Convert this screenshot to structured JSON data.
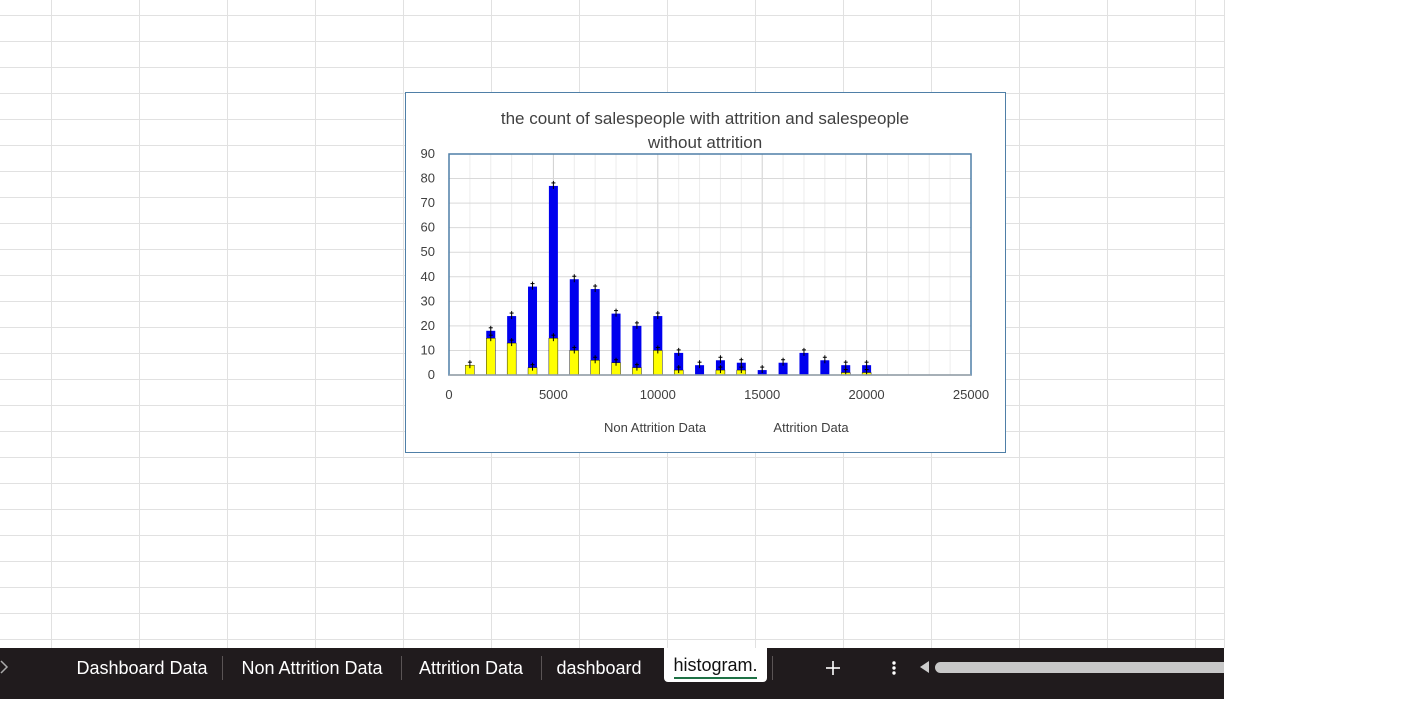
{
  "chart_data": {
    "type": "bar",
    "title_lines": [
      "the count of salespeople with attrition and salespeople",
      "without attrition"
    ],
    "xlim": [
      0,
      25000
    ],
    "ylim": [
      0,
      90
    ],
    "x_ticks": [
      "0",
      "5000",
      "10000",
      "15000",
      "20000",
      "25000"
    ],
    "y_ticks": [
      "0",
      "10",
      "20",
      "30",
      "40",
      "50",
      "60",
      "70",
      "80",
      "90"
    ],
    "legend_position": "bottom",
    "series": [
      {
        "name": "Non Attrition Data",
        "color": "#0000ee",
        "x": [
          2000,
          3000,
          4000,
          5000,
          6000,
          7000,
          8000,
          9000,
          10000,
          11000,
          12000,
          13000,
          14000,
          15000,
          16000,
          17000,
          18000,
          19000,
          20000
        ],
        "values": [
          18,
          24,
          36,
          77,
          39,
          35,
          25,
          20,
          24,
          9,
          4,
          6,
          5,
          2,
          5,
          9,
          6,
          4,
          4
        ]
      },
      {
        "name": "Attrition Data",
        "color": "#ffff00",
        "x": [
          1000,
          2000,
          3000,
          4000,
          5000,
          6000,
          7000,
          8000,
          9000,
          10000,
          11000,
          13000,
          14000,
          19000,
          20000
        ],
        "values": [
          4,
          15,
          13,
          3,
          15,
          10,
          6,
          5,
          3,
          10,
          2,
          2,
          2,
          1,
          1
        ]
      }
    ]
  },
  "tabs": {
    "prev_icon": "chevron-right-icon",
    "items": [
      {
        "label": "Dashboard Data"
      },
      {
        "label": "Non Attrition Data"
      },
      {
        "label": "Attrition Data"
      },
      {
        "label": "dashboard"
      },
      {
        "label": "histogram."
      }
    ],
    "add_icon": "plus-icon",
    "more_icon": "more-vertical-icon",
    "scroll_icon": "scroll-left-icon"
  }
}
